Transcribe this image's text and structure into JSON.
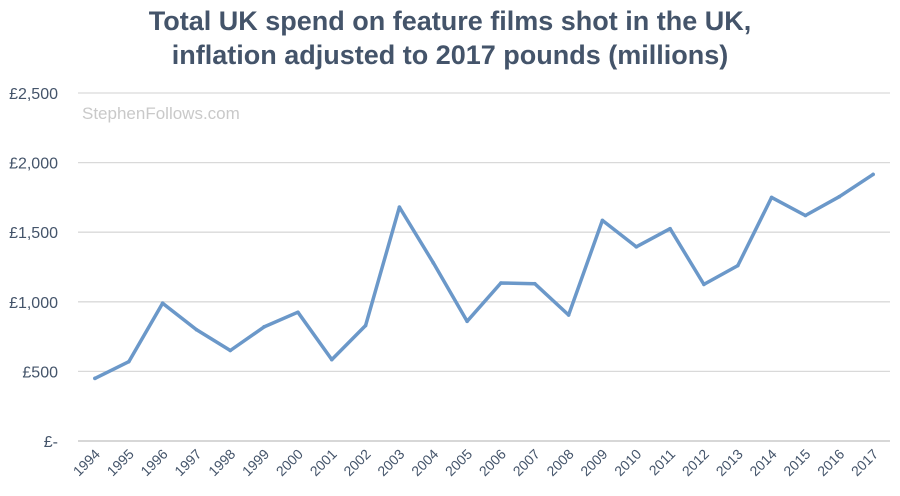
{
  "chart_data": {
    "type": "line",
    "title_lines": [
      "Total UK spend on feature films shot in the UK,",
      "inflation adjusted to 2017 pounds (millions)"
    ],
    "watermark": "StephenFollows.com",
    "categories": [
      "1994",
      "1995",
      "1996",
      "1997",
      "1998",
      "1999",
      "2000",
      "2001",
      "2002",
      "2003",
      "2004",
      "2005",
      "2006",
      "2007",
      "2008",
      "2009",
      "2010",
      "2011",
      "2012",
      "2013",
      "2014",
      "2015",
      "2016",
      "2017"
    ],
    "series": [
      {
        "values": [
          450,
          570,
          990,
          800,
          650,
          820,
          925,
          585,
          830,
          1680,
          1280,
          860,
          1135,
          1130,
          905,
          1585,
          1395,
          1525,
          1125,
          1260,
          1750,
          1620,
          1755,
          1915
        ]
      }
    ],
    "ylim": [
      0,
      2500
    ],
    "yticks": [
      0,
      500,
      1000,
      1500,
      2000,
      2500
    ],
    "ytick_labels": [
      "£-",
      "£500",
      "£1,000",
      "£1,500",
      "£2,000",
      "£2,500"
    ],
    "grid": true,
    "colors": {
      "line": "#6b98c9",
      "grid": "#d9d9d9",
      "axis": "#bfbfbf",
      "text": "#44546a",
      "watermark": "#c9c9c9"
    }
  }
}
